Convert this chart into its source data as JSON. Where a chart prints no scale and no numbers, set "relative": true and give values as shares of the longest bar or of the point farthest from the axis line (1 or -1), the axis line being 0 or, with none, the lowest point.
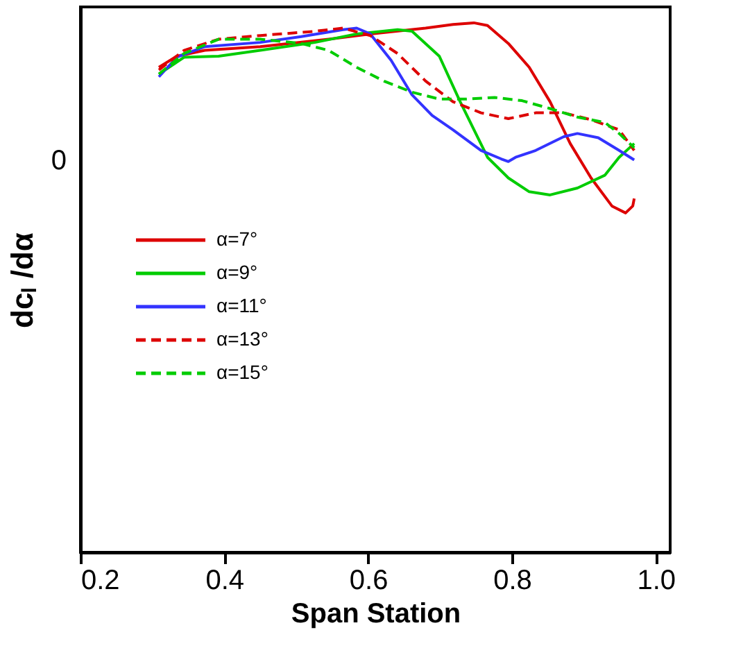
{
  "chart_data": {
    "type": "line",
    "relative": true,
    "xlabel": "Span Station",
    "ylabel": "dcₗ /dα",
    "xlim": [
      0.2,
      1.02
    ],
    "xticks": [
      0.2,
      0.4,
      0.6,
      0.8,
      {
        "value": 1.0,
        "label": "1.0"
      }
    ],
    "annotations": [
      "0"
    ],
    "grid": false,
    "legend": "left",
    "marker": "none",
    "series": [
      {
        "name": "α=7°",
        "color": "#dd0000",
        "line_style": "solid",
        "x": [
          0.309,
          0.334,
          0.373,
          0.45,
          0.545,
          0.603,
          0.68,
          0.718,
          0.747,
          0.766,
          0.795,
          0.824,
          0.853,
          0.881,
          0.91,
          0.939,
          0.958,
          0.968,
          0.97
        ],
        "values": [
          0.916,
          0.937,
          0.948,
          0.955,
          0.969,
          0.979,
          0.99,
          0.997,
          1.0,
          0.995,
          0.961,
          0.916,
          0.851,
          0.772,
          0.707,
          0.654,
          0.641,
          0.654,
          0.668
        ]
      },
      {
        "name": "α=9°",
        "color": "#00cc00",
        "line_style": "solid",
        "x": [
          0.309,
          0.344,
          0.392,
          0.45,
          0.526,
          0.584,
          0.641,
          0.661,
          0.699,
          0.728,
          0.766,
          0.795,
          0.824,
          0.853,
          0.891,
          0.929,
          0.949,
          0.97
        ],
        "values": [
          0.903,
          0.935,
          0.937,
          0.948,
          0.963,
          0.979,
          0.987,
          0.984,
          0.937,
          0.851,
          0.746,
          0.707,
          0.681,
          0.675,
          0.688,
          0.712,
          0.746,
          0.772
        ]
      },
      {
        "name": "α=11°",
        "color": "#3333ff",
        "line_style": "solid",
        "x": [
          0.309,
          0.334,
          0.373,
          0.45,
          0.507,
          0.565,
          0.584,
          0.603,
          0.632,
          0.661,
          0.689,
          0.718,
          0.757,
          0.785,
          0.795,
          0.805,
          0.833,
          0.872,
          0.891,
          0.92,
          0.949,
          0.97
        ],
        "values": [
          0.898,
          0.935,
          0.955,
          0.963,
          0.974,
          0.987,
          0.99,
          0.979,
          0.929,
          0.864,
          0.825,
          0.798,
          0.759,
          0.743,
          0.738,
          0.746,
          0.759,
          0.785,
          0.791,
          0.783,
          0.759,
          0.741
        ]
      },
      {
        "name": "α=13°",
        "color": "#dd0000",
        "line_style": "dashed",
        "x": [
          0.309,
          0.344,
          0.392,
          0.45,
          0.526,
          0.565,
          0.603,
          0.641,
          0.68,
          0.718,
          0.757,
          0.795,
          0.833,
          0.872,
          0.91,
          0.949,
          0.97
        ],
        "values": [
          0.911,
          0.948,
          0.969,
          0.976,
          0.984,
          0.99,
          0.976,
          0.942,
          0.89,
          0.851,
          0.83,
          0.819,
          0.83,
          0.83,
          0.817,
          0.798,
          0.759
        ]
      },
      {
        "name": "α=15°",
        "color": "#00cc00",
        "line_style": "dashed",
        "x": [
          0.309,
          0.344,
          0.392,
          0.45,
          0.507,
          0.545,
          0.584,
          0.622,
          0.661,
          0.699,
          0.737,
          0.776,
          0.814,
          0.853,
          0.891,
          0.929,
          0.949,
          0.97
        ],
        "values": [
          0.903,
          0.942,
          0.969,
          0.969,
          0.961,
          0.948,
          0.916,
          0.89,
          0.869,
          0.856,
          0.856,
          0.859,
          0.853,
          0.838,
          0.822,
          0.812,
          0.791,
          0.764
        ]
      }
    ]
  }
}
